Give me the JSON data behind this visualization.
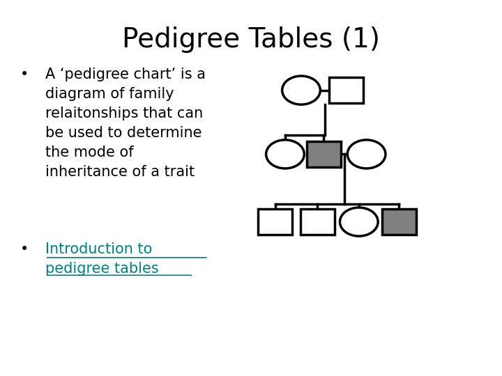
{
  "title": "Pedigree Tables (1)",
  "title_fontsize": 28,
  "bg_color": "#ffffff",
  "bullet1_lines": [
    "A ‘pedigree chart’ is a",
    "diagram of family",
    "relaitonships that can",
    "be used to determine",
    "the mode of",
    "inheritance of a trait"
  ],
  "bullet2_line1": "Introduction to",
  "bullet2_line2": "pedigree tables",
  "link_color": "#008080",
  "text_color": "#000000",
  "bullet_fontsize": 15,
  "line_color": "#000000",
  "shape_lw": 2.5,
  "gray_fill": "#808080",
  "white_fill": "#ffffff"
}
